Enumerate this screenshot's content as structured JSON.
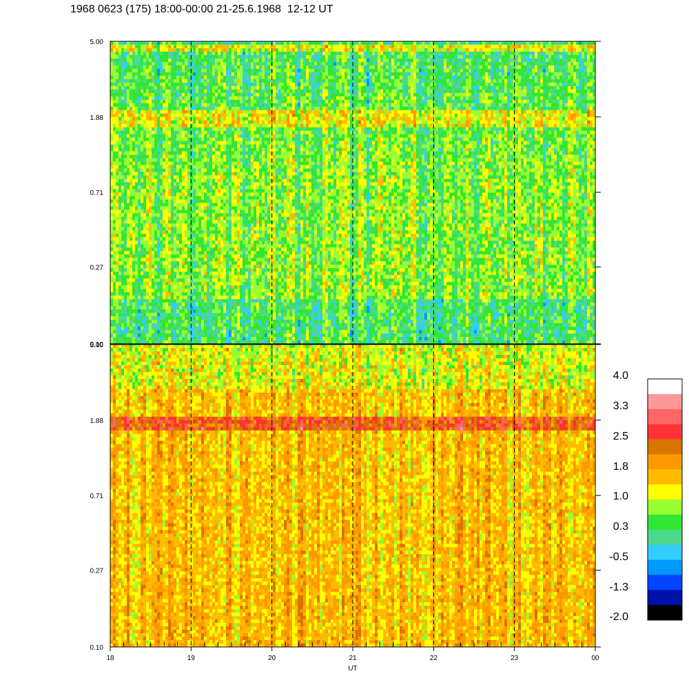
{
  "title": "1968 0623 (175) 18:00-00:00 21-25.6.1968  12-12 UT",
  "chart_data": [
    {
      "type": "heatmap",
      "name": "upper-panel",
      "x_range": [
        18,
        24
      ],
      "y_ticks": [
        "5.00",
        "1.88",
        "0.71",
        "0.27",
        "0.10"
      ],
      "y_scale": "log",
      "y_range": [
        0.1,
        5.0
      ],
      "value_range_approx": [
        -1.3,
        1.5
      ],
      "dominant_colors": [
        "green",
        "light-green",
        "blue"
      ],
      "features": [
        {
          "label": "band",
          "y": 1.88,
          "value_approx": 1.2
        },
        {
          "label": "band",
          "y": 4.5,
          "value_approx": 1.2
        }
      ]
    },
    {
      "type": "heatmap",
      "name": "lower-panel",
      "x_range": [
        18,
        24
      ],
      "y_ticks": [
        "5.00",
        "1.88",
        "0.71",
        "0.27",
        "0.10"
      ],
      "y_scale": "log",
      "y_range": [
        0.1,
        5.0
      ],
      "value_range_approx": [
        0.5,
        2.6
      ],
      "dominant_colors": [
        "orange",
        "yellow"
      ],
      "features": [
        {
          "label": "band",
          "y": 1.88,
          "value_approx": 2.5
        }
      ]
    }
  ],
  "x_ticks": [
    "18",
    "19",
    "20",
    "21",
    "22",
    "23",
    "00"
  ],
  "x_label": "UT",
  "dashed_lines_hours": [
    19,
    20,
    21,
    22,
    23
  ],
  "colorbar": {
    "labels": [
      "4.0",
      "3.3",
      "2.5",
      "1.8",
      "1.0",
      "0.3",
      "-0.5",
      "-1.3",
      "-2.0"
    ],
    "colors": [
      "#ffffff",
      "#ff9999",
      "#ff6666",
      "#ff3333",
      "#d97400",
      "#ff9900",
      "#ffbb00",
      "#ffff00",
      "#99ff33",
      "#33e633",
      "#4dd98c",
      "#33ccff",
      "#0099ff",
      "#0044ff",
      "#0011aa",
      "#000000"
    ]
  }
}
